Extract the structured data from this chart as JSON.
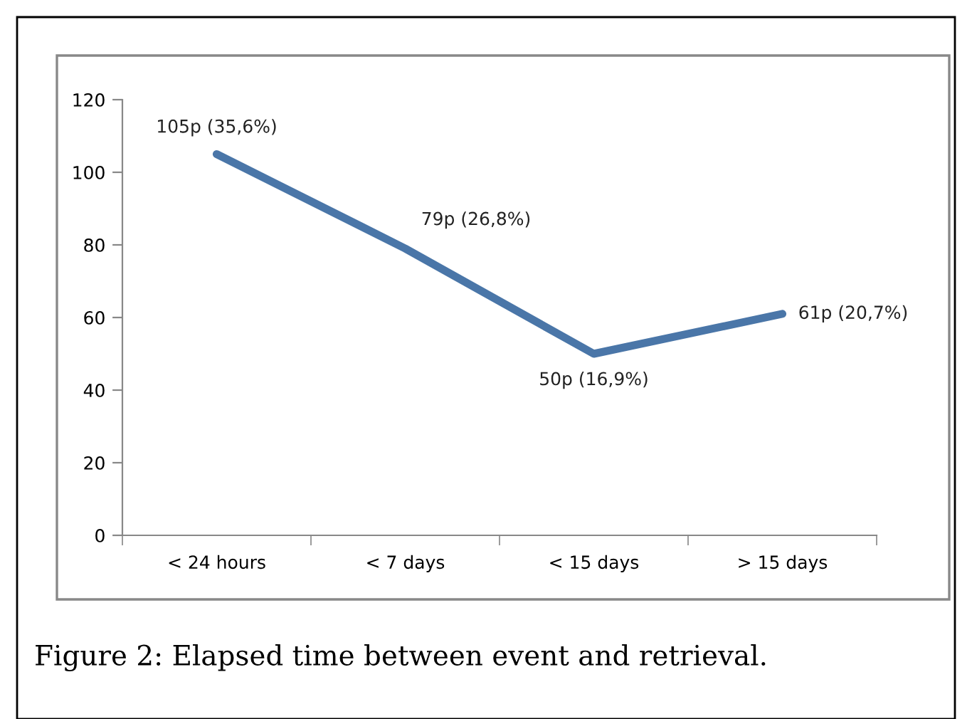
{
  "chart_data": {
    "type": "line",
    "categories": [
      "< 24 hours",
      "< 7 days",
      "< 15 days",
      "> 15 days"
    ],
    "series": [
      {
        "color": "#4a76a8",
        "values": [
          105,
          79,
          50,
          61
        ],
        "value_labels": [
          "105p (35,6%)",
          "79p (26,8%)",
          "50p (16,9%)",
          "61p (20,7%)"
        ]
      }
    ],
    "ylim": [
      0,
      120
    ],
    "yticks": [
      0,
      20,
      40,
      60,
      80,
      100,
      120
    ],
    "grid": false,
    "marker": "none",
    "line_style": "solid",
    "annotations": [
      "Figure 2: Elapsed time between event and retrieval."
    ]
  }
}
